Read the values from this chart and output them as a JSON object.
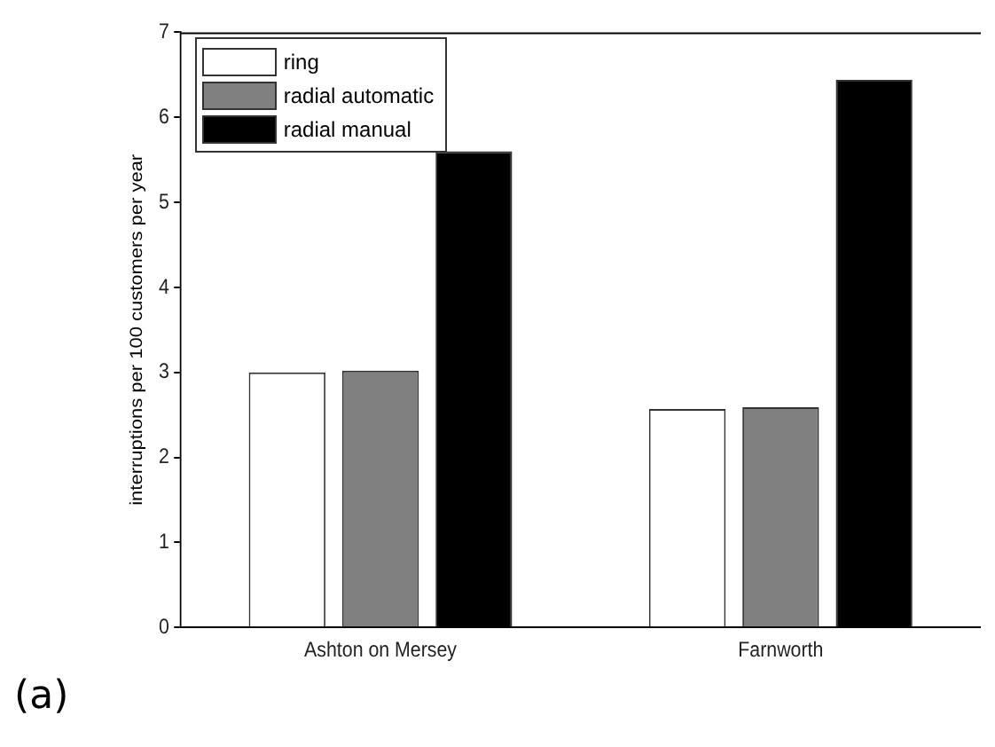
{
  "chart_data": {
    "type": "bar",
    "ylabel": "interruptions per 100 customers per year",
    "categories": [
      "Ashton on Mersey",
      "Farnworth"
    ],
    "series": [
      {
        "name": "ring",
        "color": "#ffffff",
        "values": [
          3.0,
          2.57
        ]
      },
      {
        "name": "radial automatic",
        "color": "#808080",
        "values": [
          3.02,
          2.59
        ]
      },
      {
        "name": "radial manual",
        "color": "#000000",
        "values": [
          5.6,
          6.44
        ]
      }
    ],
    "ylim": [
      0,
      7
    ],
    "yticks": [
      0,
      1,
      2,
      3,
      4,
      5,
      6,
      7
    ],
    "grid": false,
    "legend": "top left",
    "annotations": [
      "(a)"
    ]
  }
}
